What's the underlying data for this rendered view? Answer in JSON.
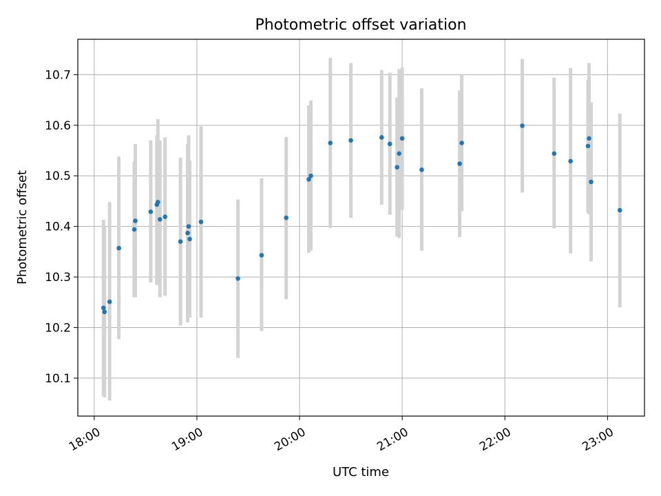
{
  "chart_data": {
    "type": "scatter",
    "title": "Photometric offset variation",
    "xlabel": "UTC time",
    "ylabel": "Photometric offset",
    "xlim": [
      17.84,
      23.36
    ],
    "ylim": [
      10.025,
      10.77
    ],
    "grid": true,
    "point_color": "#1f77b4",
    "errorbar_color": "#d3d3d3",
    "x_ticks": [
      {
        "value": 18,
        "label": "18:00"
      },
      {
        "value": 19,
        "label": "19:00"
      },
      {
        "value": 20,
        "label": "20:00"
      },
      {
        "value": 21,
        "label": "21:00"
      },
      {
        "value": 22,
        "label": "22:00"
      },
      {
        "value": 23,
        "label": "23:00"
      }
    ],
    "y_ticks": [
      {
        "value": 10.1,
        "label": "10.1"
      },
      {
        "value": 10.2,
        "label": "10.2"
      },
      {
        "value": 10.3,
        "label": "10.3"
      },
      {
        "value": 10.4,
        "label": "10.4"
      },
      {
        "value": 10.5,
        "label": "10.5"
      },
      {
        "value": 10.6,
        "label": "10.6"
      },
      {
        "value": 10.7,
        "label": "10.7"
      }
    ],
    "points": [
      {
        "x": 18.09,
        "y": 10.239,
        "lo": 10.065,
        "hi": 10.413
      },
      {
        "x": 18.1,
        "y": 10.231,
        "lo": 10.062,
        "hi": 10.4
      },
      {
        "x": 18.15,
        "y": 10.251,
        "lo": 10.056,
        "hi": 10.448
      },
      {
        "x": 18.24,
        "y": 10.357,
        "lo": 10.177,
        "hi": 10.538
      },
      {
        "x": 18.39,
        "y": 10.394,
        "lo": 10.26,
        "hi": 10.528
      },
      {
        "x": 18.4,
        "y": 10.411,
        "lo": 10.26,
        "hi": 10.563
      },
      {
        "x": 18.55,
        "y": 10.429,
        "lo": 10.289,
        "hi": 10.57
      },
      {
        "x": 18.61,
        "y": 10.443,
        "lo": 10.285,
        "hi": 10.58
      },
      {
        "x": 18.62,
        "y": 10.448,
        "lo": 10.284,
        "hi": 10.612
      },
      {
        "x": 18.64,
        "y": 10.414,
        "lo": 10.26,
        "hi": 10.57
      },
      {
        "x": 18.69,
        "y": 10.419,
        "lo": 10.263,
        "hi": 10.576
      },
      {
        "x": 18.84,
        "y": 10.37,
        "lo": 10.204,
        "hi": 10.536
      },
      {
        "x": 18.91,
        "y": 10.387,
        "lo": 10.21,
        "hi": 10.563
      },
      {
        "x": 18.92,
        "y": 10.4,
        "lo": 10.22,
        "hi": 10.58
      },
      {
        "x": 18.93,
        "y": 10.375,
        "lo": 10.22,
        "hi": 10.53
      },
      {
        "x": 19.04,
        "y": 10.409,
        "lo": 10.22,
        "hi": 10.598
      },
      {
        "x": 19.4,
        "y": 10.297,
        "lo": 10.14,
        "hi": 10.453
      },
      {
        "x": 19.63,
        "y": 10.343,
        "lo": 10.193,
        "hi": 10.495
      },
      {
        "x": 19.87,
        "y": 10.417,
        "lo": 10.256,
        "hi": 10.577
      },
      {
        "x": 20.09,
        "y": 10.493,
        "lo": 10.348,
        "hi": 10.639
      },
      {
        "x": 20.11,
        "y": 10.5,
        "lo": 10.352,
        "hi": 10.649
      },
      {
        "x": 20.3,
        "y": 10.565,
        "lo": 10.397,
        "hi": 10.733
      },
      {
        "x": 20.5,
        "y": 10.57,
        "lo": 10.417,
        "hi": 10.723
      },
      {
        "x": 20.8,
        "y": 10.576,
        "lo": 10.443,
        "hi": 10.709
      },
      {
        "x": 20.88,
        "y": 10.563,
        "lo": 10.423,
        "hi": 10.704
      },
      {
        "x": 20.95,
        "y": 10.517,
        "lo": 10.38,
        "hi": 10.655
      },
      {
        "x": 20.97,
        "y": 10.544,
        "lo": 10.377,
        "hi": 10.711
      },
      {
        "x": 21.0,
        "y": 10.574,
        "lo": 10.433,
        "hi": 10.714
      },
      {
        "x": 21.19,
        "y": 10.512,
        "lo": 10.352,
        "hi": 10.673
      },
      {
        "x": 21.56,
        "y": 10.524,
        "lo": 10.379,
        "hi": 10.669
      },
      {
        "x": 21.58,
        "y": 10.565,
        "lo": 10.43,
        "hi": 10.7
      },
      {
        "x": 22.17,
        "y": 10.599,
        "lo": 10.467,
        "hi": 10.731
      },
      {
        "x": 22.48,
        "y": 10.544,
        "lo": 10.396,
        "hi": 10.694
      },
      {
        "x": 22.64,
        "y": 10.529,
        "lo": 10.347,
        "hi": 10.713
      },
      {
        "x": 22.81,
        "y": 10.559,
        "lo": 10.427,
        "hi": 10.69
      },
      {
        "x": 22.82,
        "y": 10.574,
        "lo": 10.424,
        "hi": 10.723
      },
      {
        "x": 22.84,
        "y": 10.488,
        "lo": 10.331,
        "hi": 10.645
      },
      {
        "x": 23.12,
        "y": 10.432,
        "lo": 10.24,
        "hi": 10.623
      }
    ]
  }
}
